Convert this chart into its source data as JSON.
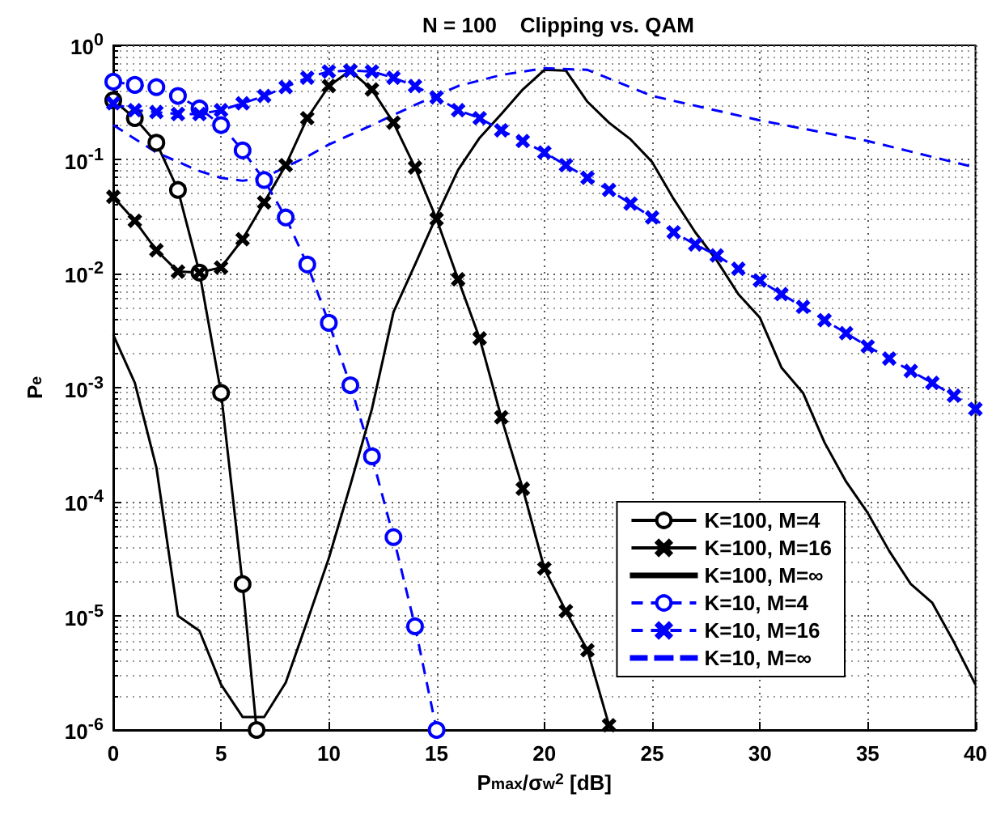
{
  "chart_data": {
    "type": "line",
    "title": "N = 100    Clipping vs. QAM",
    "xlabel": "P$_{max}$/σ$_{w}$$^{2}$ [dB]",
    "ylabel": "P$_{e}$",
    "log": "y",
    "grid": true,
    "legend": "bottom right",
    "xlim": [
      0,
      40
    ],
    "xticks": [
      0,
      5,
      10,
      15,
      20,
      25,
      30,
      35,
      40
    ],
    "ylim": [
      1e-06,
      1
    ],
    "yticks": [
      {
        "value": 1e-06,
        "label": "10$^{-6}$"
      },
      {
        "value": 1e-05,
        "label": "10$^{-5}$"
      },
      {
        "value": 0.0001,
        "label": "10$^{-4}$"
      },
      {
        "value": 0.001,
        "label": "10$^{-3}$"
      },
      {
        "value": 0.01,
        "label": "10$^{-2}$"
      },
      {
        "value": 0.1,
        "label": "10$^{-1}$"
      },
      {
        "value": 1,
        "label": "10$^{0}$"
      }
    ],
    "series": [
      {
        "name": "K=100, M=4",
        "color": "#000000",
        "marker": "circle",
        "line_style": "solid",
        "x": [
          0,
          1,
          2,
          3,
          4,
          5,
          6,
          6.65
        ],
        "values": [
          0.33,
          0.23,
          0.14,
          0.054,
          0.0102,
          0.0009,
          1.9e-05,
          1e-06
        ]
      },
      {
        "name": "K=100, M=16",
        "color": "#000000",
        "marker": "cross",
        "line_style": "solid",
        "x": [
          0,
          1,
          2,
          3,
          4,
          5,
          6,
          7,
          8,
          9,
          10,
          11,
          12,
          13,
          14,
          15,
          16,
          17,
          18,
          19,
          20,
          21,
          22,
          23
        ],
        "values": [
          0.047,
          0.029,
          0.016,
          0.0104,
          0.0102,
          0.0113,
          0.02,
          0.042,
          0.089,
          0.23,
          0.44,
          0.6,
          0.41,
          0.21,
          0.085,
          0.03,
          0.0089,
          0.0027,
          0.00055,
          0.00013,
          2.6e-05,
          1.1e-05,
          5e-06,
          1.1e-06
        ]
      },
      {
        "name": "K=100, M=∞",
        "color": "#000000",
        "marker": "none",
        "line_style": "solid",
        "x": [
          0,
          1,
          2,
          3,
          4,
          5,
          6,
          7,
          8,
          9,
          10,
          11,
          12,
          13,
          14,
          15,
          16,
          17,
          18,
          19,
          20,
          21,
          22,
          23,
          24,
          25,
          26,
          27,
          28,
          29,
          30,
          31,
          32,
          33,
          34,
          35,
          36,
          37,
          38,
          39,
          40
        ],
        "values": [
          0.0029,
          0.0011,
          0.0002,
          1e-05,
          7.4e-06,
          2.5e-06,
          1.3e-06,
          1.3e-06,
          2.6e-06,
          9e-06,
          3.2e-05,
          0.00014,
          0.00065,
          0.0046,
          0.012,
          0.032,
          0.081,
          0.155,
          0.25,
          0.41,
          0.61,
          0.6,
          0.32,
          0.21,
          0.15,
          0.095,
          0.045,
          0.023,
          0.013,
          0.0066,
          0.0041,
          0.0015,
          0.0009,
          0.00033,
          0.00015,
          8e-05,
          3.7e-05,
          1.9e-05,
          1.3e-05,
          5.9e-06,
          2.5e-06
        ]
      },
      {
        "name": "K=10, M=4",
        "color": "#0000ff",
        "marker": "circle",
        "line_style": "dashed",
        "x": [
          0,
          1,
          2,
          3,
          4,
          5,
          6,
          7,
          8,
          9,
          10,
          11,
          12,
          13,
          14,
          15
        ],
        "values": [
          0.48,
          0.45,
          0.43,
          0.36,
          0.28,
          0.2,
          0.12,
          0.066,
          0.031,
          0.012,
          0.0037,
          0.00105,
          0.00025,
          4.9e-05,
          8.1e-06,
          1e-06
        ]
      },
      {
        "name": "K=10, M=16",
        "color": "#0000ff",
        "marker": "cross",
        "line_style": "dashed",
        "x": [
          0,
          1,
          2,
          3,
          4,
          5,
          6,
          7,
          8,
          9,
          10,
          11,
          12,
          13,
          14,
          15,
          16,
          17,
          18,
          19,
          20,
          21,
          22,
          23,
          24,
          25,
          26,
          27,
          28,
          29,
          30,
          31,
          32,
          33,
          34,
          35,
          36,
          37,
          38,
          39,
          40
        ],
        "values": [
          0.31,
          0.27,
          0.26,
          0.25,
          0.25,
          0.27,
          0.31,
          0.36,
          0.43,
          0.52,
          0.59,
          0.6,
          0.59,
          0.52,
          0.44,
          0.35,
          0.27,
          0.23,
          0.18,
          0.145,
          0.115,
          0.089,
          0.069,
          0.054,
          0.041,
          0.031,
          0.023,
          0.018,
          0.0144,
          0.011,
          0.0087,
          0.0066,
          0.0051,
          0.0039,
          0.003,
          0.0023,
          0.0018,
          0.0014,
          0.0011,
          0.00085,
          0.00065
        ]
      },
      {
        "name": "K=10, M=∞",
        "color": "#0000ff",
        "marker": "none",
        "line_style": "dashed",
        "x": [
          0,
          2,
          4,
          5,
          6,
          7,
          8,
          9,
          10,
          12,
          14,
          16,
          18,
          20,
          22,
          25,
          30,
          35,
          40
        ],
        "values": [
          0.2,
          0.115,
          0.079,
          0.069,
          0.065,
          0.069,
          0.086,
          0.106,
          0.135,
          0.2,
          0.3,
          0.44,
          0.55,
          0.63,
          0.61,
          0.36,
          0.22,
          0.145,
          0.085
        ]
      }
    ]
  }
}
